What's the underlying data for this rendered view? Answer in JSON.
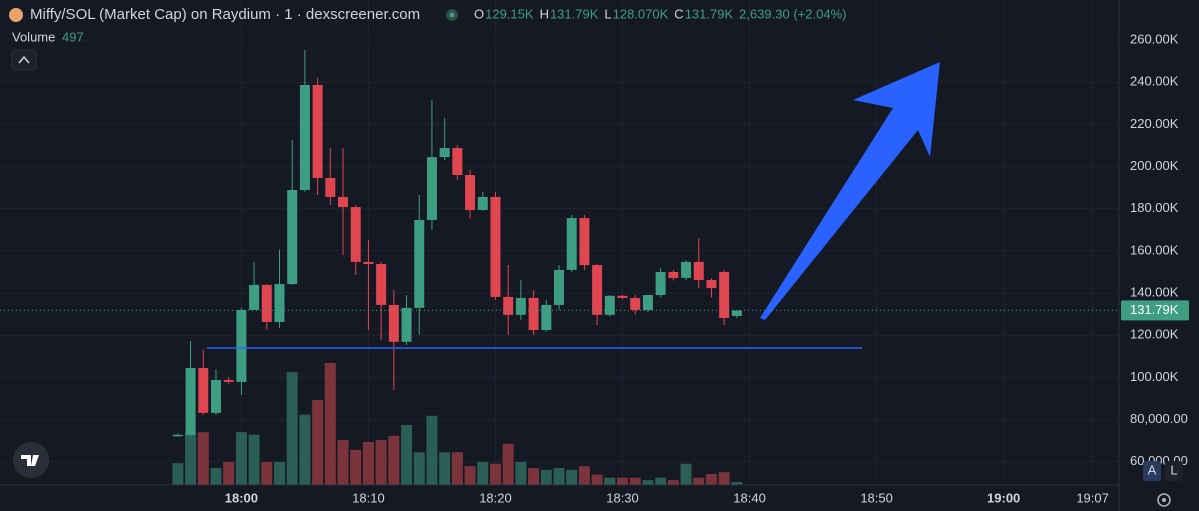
{
  "header": {
    "title": "Miffy/SOL (Market Cap) on Raydium · 1 · dexscreener.com",
    "legend": [
      {
        "key": "O",
        "value": "129.15K"
      },
      {
        "key": "H",
        "value": "131.79K"
      },
      {
        "key": "L",
        "value": "128.070K"
      },
      {
        "key": "C",
        "value": "131.79K"
      }
    ],
    "change": "2,639.30 (+2.04%)",
    "volume_label": "Volume",
    "volume_value": 497
  },
  "controls": [
    "A",
    "L"
  ],
  "chart_data": {
    "type": "candlestick",
    "x": [
      "17:55",
      "17:56",
      "17:57",
      "17:58",
      "17:59",
      "18:00",
      "18:01",
      "18:02",
      "18:03",
      "18:04",
      "18:05",
      "18:06",
      "18:07",
      "18:08",
      "18:09",
      "18:10",
      "18:11",
      "18:12",
      "18:13",
      "18:14",
      "18:15",
      "18:16",
      "18:17",
      "18:18",
      "18:19",
      "18:20",
      "18:21",
      "18:22",
      "18:23",
      "18:24",
      "18:25",
      "18:26",
      "18:27",
      "18:28",
      "18:29",
      "18:30",
      "18:31",
      "18:32",
      "18:33",
      "18:34",
      "18:35",
      "18:36",
      "18:37",
      "18:38",
      "18:39"
    ],
    "open": [
      72300,
      72800,
      104500,
      83200,
      98800,
      97900,
      132000,
      143900,
      126300,
      144300,
      188900,
      238700,
      194600,
      185600,
      180800,
      154800,
      153800,
      134400,
      116900,
      133000,
      174700,
      204500,
      208800,
      196000,
      179400,
      185600,
      138200,
      129700,
      137700,
      122500,
      134400,
      151000,
      175600,
      153300,
      129700,
      138700,
      137700,
      132000,
      139100,
      150000,
      147200,
      154800,
      146200,
      150000,
      129150
    ],
    "high": [
      73500,
      117300,
      113100,
      104000,
      100000,
      133000,
      154800,
      144300,
      160500,
      212600,
      255300,
      242000,
      208800,
      208800,
      181800,
      165200,
      154800,
      141500,
      139100,
      186500,
      231600,
      223000,
      210200,
      198400,
      188000,
      188000,
      153300,
      146200,
      141500,
      136800,
      153300,
      177100,
      177100,
      153800,
      139100,
      139100,
      139100,
      139100,
      151900,
      151000,
      155700,
      166100,
      147000,
      151000,
      131790
    ],
    "low": [
      72000,
      72300,
      82300,
      82300,
      97000,
      91700,
      132000,
      122500,
      123500,
      143900,
      188000,
      186500,
      181800,
      158100,
      148600,
      122500,
      117800,
      94000,
      115400,
      120200,
      170000,
      203100,
      193600,
      175600,
      179000,
      136800,
      120200,
      127300,
      120200,
      121600,
      132000,
      150000,
      151000,
      124900,
      129000,
      137000,
      129700,
      131000,
      138000,
      146000,
      146200,
      142400,
      138000,
      124900,
      128070
    ],
    "close": [
      72800,
      104500,
      83200,
      98800,
      97900,
      132000,
      143900,
      126300,
      144300,
      188900,
      238700,
      194600,
      185600,
      180800,
      154800,
      153800,
      134400,
      116900,
      133000,
      174700,
      204500,
      208800,
      196000,
      179400,
      185600,
      138200,
      129700,
      137700,
      122500,
      134400,
      151000,
      175600,
      153300,
      129700,
      138700,
      137700,
      132000,
      139100,
      150000,
      147200,
      154800,
      146200,
      142400,
      128200,
      131790
    ],
    "volume": [
      3600,
      8700,
      8700,
      2800,
      3800,
      8700,
      8300,
      3800,
      3800,
      18600,
      11600,
      14000,
      20100,
      7400,
      5800,
      7100,
      7400,
      8100,
      9900,
      5400,
      11400,
      5400,
      5400,
      3100,
      3800,
      3500,
      6800,
      3800,
      2800,
      2500,
      2800,
      2500,
      3100,
      1700,
      1200,
      1200,
      1200,
      800,
      1200,
      800,
      3500,
      1200,
      1800,
      2100,
      497
    ],
    "up_color": "#3d9e82",
    "down_color": "#e0464f",
    "up_volume_color": "#2b5f56",
    "down_volume_color": "#7b343c",
    "xlim": [
      "17:41",
      "19:09"
    ],
    "xticks": [
      "18:00",
      "18:10",
      "18:20",
      "18:30",
      "18:40",
      "18:50",
      "19:00",
      "19:07"
    ],
    "ylim": [
      49000,
      279000
    ],
    "yticks": [
      {
        "value": 60000,
        "label": "60,000.00"
      },
      {
        "value": 80000,
        "label": "80,000.00"
      },
      {
        "value": 100000,
        "label": "100.00K"
      },
      {
        "value": 120000,
        "label": "120.00K"
      },
      {
        "value": 140000,
        "label": "140.00K"
      },
      {
        "value": 160000,
        "label": "160.00K"
      },
      {
        "value": 180000,
        "label": "180.00K"
      },
      {
        "value": 200000,
        "label": "200.00K"
      },
      {
        "value": 220000,
        "label": "220.00K"
      },
      {
        "value": 240000,
        "label": "240.00K"
      },
      {
        "value": 260000,
        "label": "260.00K"
      }
    ],
    "grid": true
  }
}
